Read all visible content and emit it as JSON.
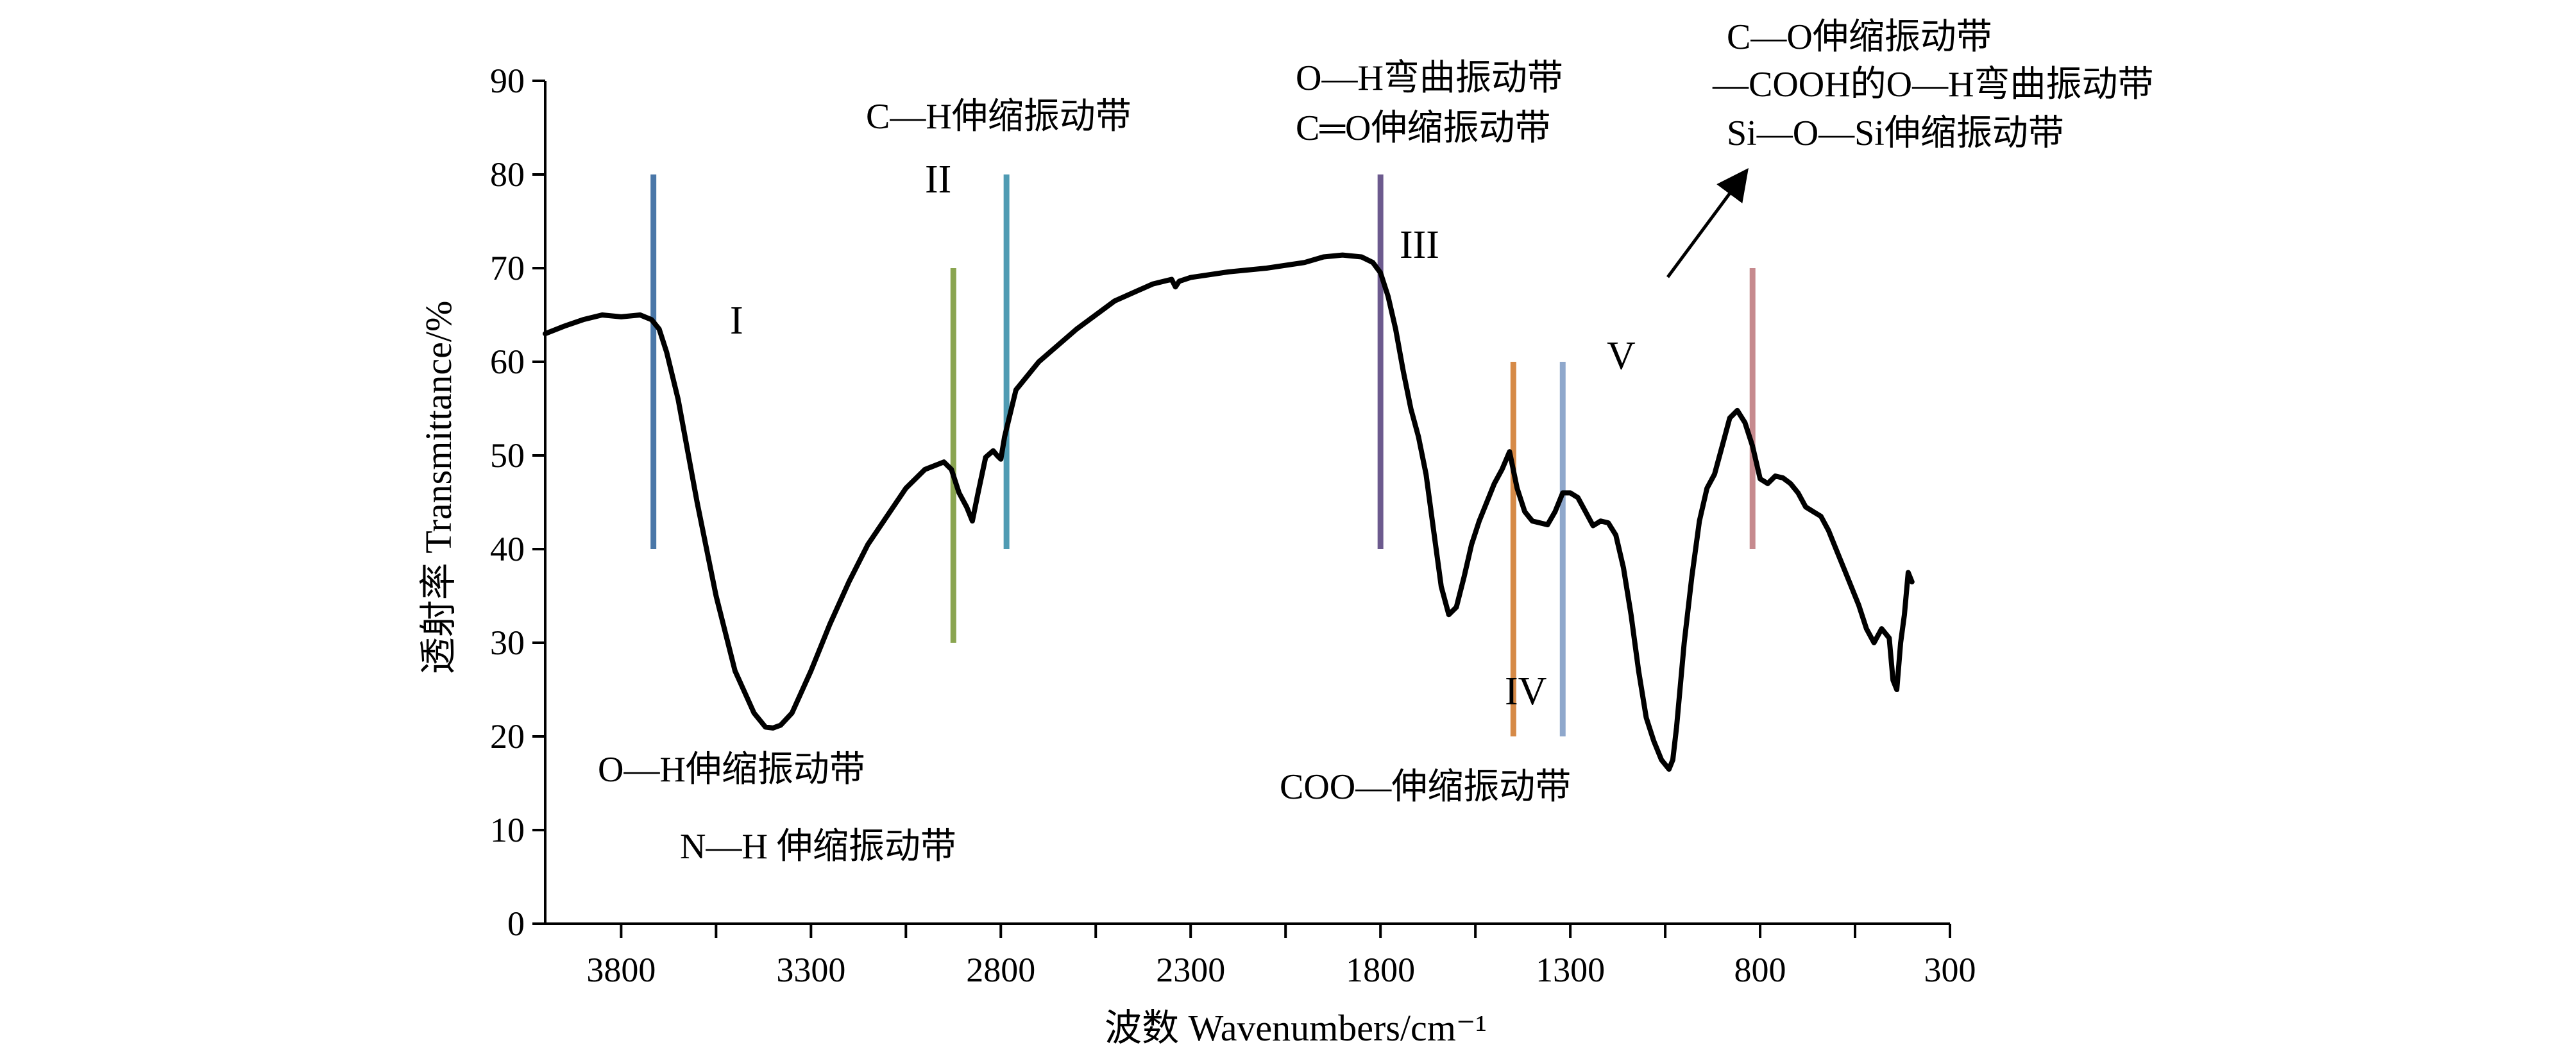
{
  "chart_data": {
    "type": "line",
    "ylabel": "透射率 Transmittance/%",
    "xlabel": "波数 Wavenumbers/cm⁻¹",
    "xlim": [
      4000,
      300
    ],
    "ylim": [
      0,
      90
    ],
    "x_ticks": [
      "3800",
      "3300",
      "2800",
      "2300",
      "1800",
      "1300",
      "800",
      "300"
    ],
    "y_ticks": [
      "0",
      "10",
      "20",
      "30",
      "40",
      "50",
      "60",
      "70",
      "80",
      "90"
    ],
    "series": [
      {
        "color": "#000000",
        "x": [
          4000,
          3950,
          3900,
          3850,
          3800,
          3750,
          3720,
          3700,
          3680,
          3650,
          3600,
          3550,
          3500,
          3450,
          3420,
          3400,
          3380,
          3350,
          3300,
          3250,
          3200,
          3150,
          3100,
          3050,
          3000,
          2950,
          2930,
          2910,
          2890,
          2875,
          2860,
          2840,
          2820,
          2810,
          2800,
          2790,
          2760,
          2700,
          2600,
          2500,
          2400,
          2350,
          2340,
          2330,
          2300,
          2200,
          2100,
          2000,
          1950,
          1900,
          1850,
          1820,
          1800,
          1780,
          1760,
          1740,
          1720,
          1700,
          1680,
          1660,
          1640,
          1620,
          1600,
          1580,
          1560,
          1540,
          1520,
          1500,
          1480,
          1460,
          1440,
          1420,
          1400,
          1380,
          1360,
          1340,
          1320,
          1300,
          1280,
          1260,
          1240,
          1220,
          1200,
          1180,
          1160,
          1140,
          1120,
          1100,
          1080,
          1060,
          1040,
          1030,
          1020,
          1000,
          980,
          960,
          940,
          920,
          900,
          880,
          860,
          840,
          820,
          800,
          780,
          760,
          740,
          720,
          700,
          680,
          660,
          640,
          620,
          600,
          580,
          560,
          540,
          520,
          500,
          480,
          460,
          450,
          440,
          430,
          420,
          410,
          400
        ],
        "y": [
          63,
          63.8,
          64.5,
          65,
          64.8,
          65,
          64.5,
          63.5,
          61,
          56,
          45,
          35,
          27,
          22.5,
          21,
          20.9,
          21.2,
          22.5,
          27,
          32,
          36.5,
          40.5,
          43.5,
          46.5,
          48.5,
          49.3,
          48.5,
          46,
          44.5,
          43,
          46,
          49.8,
          50.5,
          50,
          49.6,
          52,
          57,
          60,
          63.5,
          66.5,
          68.3,
          68.8,
          68,
          68.6,
          69,
          69.6,
          70,
          70.6,
          71.2,
          71.4,
          71.2,
          70.6,
          69.5,
          67,
          63.5,
          59,
          55,
          52,
          48,
          42,
          36,
          33,
          33.8,
          37,
          40.5,
          43,
          45,
          47,
          48.5,
          50.4,
          46.5,
          44,
          43,
          42.8,
          42.6,
          44,
          46,
          46,
          45.5,
          44,
          42.5,
          43,
          42.8,
          41.5,
          38,
          33,
          27,
          22,
          19.5,
          17.5,
          16.5,
          17.5,
          21,
          30,
          37,
          43,
          46.5,
          48,
          51,
          54,
          54.8,
          53.5,
          51,
          47.5,
          47,
          47.8,
          47.6,
          47,
          46,
          44.5,
          44,
          43.5,
          42,
          40,
          38,
          36,
          34,
          31.5,
          30,
          31.5,
          30.5,
          26,
          25,
          30,
          33,
          37.5,
          36.5
        ]
      }
    ],
    "markers": [
      {
        "x": 3715,
        "y1": 40,
        "y2": 80,
        "color": "#4a77a8"
      },
      {
        "x": 2925,
        "y1": 30,
        "y2": 70,
        "color": "#8aa550"
      },
      {
        "x": 2785,
        "y1": 40,
        "y2": 80,
        "color": "#4f9bb3"
      },
      {
        "x": 1800,
        "y1": 40,
        "y2": 80,
        "color": "#6c5a8e"
      },
      {
        "x": 1450,
        "y1": 20,
        "y2": 60,
        "color": "#d68a47"
      },
      {
        "x": 1320,
        "y1": 20,
        "y2": 60,
        "color": "#8fa8cc"
      },
      {
        "x": 820,
        "y1": 40,
        "y2": 70,
        "color": "#c68a8e"
      }
    ],
    "annotations": {
      "oh_stretch": "O—H伸缩振动带",
      "nh_stretch": "N—H 伸缩振动带",
      "ch_stretch": "C—H伸缩振动带",
      "oh_bend": "O—H弯曲振动带",
      "co_double_stretch": "C═O伸缩振动带",
      "coo_stretch": "COO—伸缩振动带",
      "co_stretch": "C—O伸缩振动带",
      "cooh_oh_bend": "—COOH的O—H弯曲振动带",
      "sios_stretch": "Si—O—Si伸缩振动带"
    },
    "regions": {
      "r1": "I",
      "r2": "II",
      "r3": "III",
      "r4": "IV",
      "r5": "V"
    }
  }
}
